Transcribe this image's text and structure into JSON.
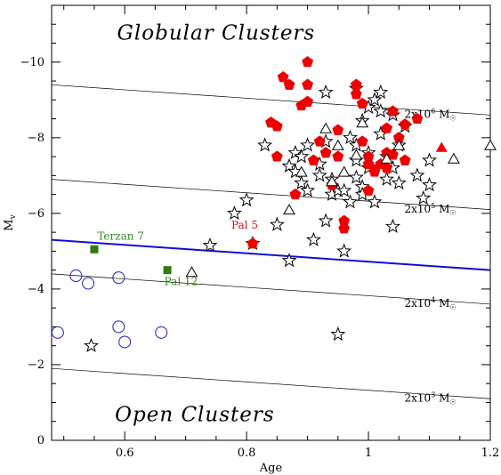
{
  "chart_data": {
    "type": "scatter",
    "title": "",
    "xlabel": "Age",
    "ylabel": "Mv",
    "xlim": [
      0.48,
      1.2
    ],
    "ylim": [
      0,
      -11.5
    ],
    "x_ticks": [
      0.6,
      0.8,
      1,
      1.2
    ],
    "y_ticks": [
      0,
      -2,
      -4,
      -6,
      -8,
      -10
    ],
    "x_tick_labels": [
      "0.6",
      "0.8",
      "1",
      "1.2"
    ],
    "y_tick_labels": [
      "0",
      "−2",
      "−4",
      "−6",
      "−8",
      "−10"
    ],
    "region_labels": [
      {
        "text": "Globular Clusters",
        "x": 0.75,
        "y": -10.6
      },
      {
        "text": "Open Clusters",
        "x": 0.715,
        "y": -0.5
      }
    ],
    "mass_lines": [
      {
        "label": "2x10^6 M☉",
        "base": "2x10",
        "exp": "6",
        "unit": "M",
        "sun": "☉",
        "x": [
          0.48,
          1.2
        ],
        "y": [
          -9.4,
          -8.6
        ]
      },
      {
        "label": "2x10^5 M☉",
        "base": "2x10",
        "exp": "5",
        "unit": "M",
        "sun": "☉",
        "x": [
          0.48,
          1.2
        ],
        "y": [
          -6.9,
          -6.1
        ]
      },
      {
        "label": "2x10^4 M☉",
        "base": "2x10",
        "exp": "4",
        "unit": "M",
        "sun": "☉",
        "x": [
          0.48,
          1.2
        ],
        "y": [
          -4.4,
          -3.6
        ]
      },
      {
        "label": "2x10^3 M☉",
        "base": "2x10",
        "exp": "3",
        "unit": "M",
        "sun": "☉",
        "x": [
          0.48,
          1.2
        ],
        "y": [
          -1.9,
          -1.1
        ]
      }
    ],
    "division_line": {
      "x": [
        0.48,
        1.2
      ],
      "y": [
        -5.3,
        -4.5
      ],
      "color": "#1010d0"
    },
    "annotations": [
      {
        "text": "Terzan 7",
        "x": 0.555,
        "y": -5.3,
        "color": "#2e8b1e"
      },
      {
        "text": "Pal 12",
        "x": 0.665,
        "y": -4.1,
        "color": "#2e8b1e"
      },
      {
        "text": "Pal 5",
        "x": 0.775,
        "y": -5.6,
        "color": "#e01010"
      }
    ],
    "series": [
      {
        "marker": "star",
        "color": "#000000",
        "points": [
          [
            0.545,
            -2.5
          ],
          [
            0.74,
            -5.15
          ],
          [
            0.78,
            -6.0
          ],
          [
            0.8,
            -6.35
          ],
          [
            0.81,
            -5.2
          ],
          [
            0.83,
            -7.8
          ],
          [
            0.85,
            -5.7
          ],
          [
            0.87,
            -4.75
          ],
          [
            0.87,
            -7.25
          ],
          [
            0.88,
            -7.6
          ],
          [
            0.88,
            -7.1
          ],
          [
            0.89,
            -6.8
          ],
          [
            0.89,
            -7.5
          ],
          [
            0.9,
            -7.8
          ],
          [
            0.9,
            -6.6
          ],
          [
            0.91,
            -5.3
          ],
          [
            0.92,
            -7.3
          ],
          [
            0.92,
            -7.0
          ],
          [
            0.93,
            -9.2
          ],
          [
            0.93,
            -7.9
          ],
          [
            0.93,
            -5.8
          ],
          [
            0.94,
            -6.5
          ],
          [
            0.94,
            -6.9
          ],
          [
            0.95,
            -2.8
          ],
          [
            0.95,
            -6.6
          ],
          [
            0.96,
            -5.0
          ],
          [
            0.96,
            -6.6
          ],
          [
            0.97,
            -8.0
          ],
          [
            0.97,
            -6.3
          ],
          [
            0.98,
            -9.3
          ],
          [
            0.98,
            -7.8
          ],
          [
            0.98,
            -7.4
          ],
          [
            0.98,
            -6.95
          ],
          [
            0.99,
            -6.7
          ],
          [
            0.99,
            -8.45
          ],
          [
            0.99,
            -6.5
          ],
          [
            1.0,
            -8.8
          ],
          [
            1.0,
            -7.6
          ],
          [
            1.0,
            -7.2
          ],
          [
            1.01,
            -9.0
          ],
          [
            1.01,
            -6.3
          ],
          [
            1.02,
            -9.2
          ],
          [
            1.02,
            -8.7
          ],
          [
            1.02,
            -8.1
          ],
          [
            1.03,
            -7.5
          ],
          [
            1.03,
            -6.9
          ],
          [
            1.04,
            -8.6
          ],
          [
            1.04,
            -7.2
          ],
          [
            1.04,
            -5.65
          ],
          [
            1.05,
            -7.8
          ],
          [
            1.05,
            -6.8
          ],
          [
            1.06,
            -8.3
          ],
          [
            1.08,
            -7.0
          ],
          [
            1.09,
            -6.4
          ],
          [
            1.1,
            -7.4
          ],
          [
            1.1,
            -6.75
          ]
        ]
      },
      {
        "marker": "pentagon",
        "color": "#ee0000",
        "points": [
          [
            0.81,
            -5.2
          ],
          [
            0.84,
            -8.4
          ],
          [
            0.85,
            -8.3
          ],
          [
            0.86,
            -9.6
          ],
          [
            0.87,
            -9.4
          ],
          [
            0.88,
            -6.5
          ],
          [
            0.89,
            -8.85
          ],
          [
            0.9,
            -10.0
          ],
          [
            0.9,
            -9.4
          ],
          [
            0.9,
            -8.95
          ],
          [
            0.85,
            -7.5
          ],
          [
            0.91,
            -7.4
          ],
          [
            0.92,
            -7.9
          ],
          [
            0.93,
            -7.6
          ],
          [
            0.94,
            -6.75
          ],
          [
            0.95,
            -7.5
          ],
          [
            0.95,
            -8.2
          ],
          [
            0.96,
            -5.6
          ],
          [
            0.96,
            -5.8
          ],
          [
            0.98,
            -9.4
          ],
          [
            0.98,
            -9.15
          ],
          [
            0.99,
            -8.9
          ],
          [
            0.99,
            -7.9
          ],
          [
            1.0,
            -7.5
          ],
          [
            1.0,
            -7.3
          ],
          [
            1.0,
            -6.6
          ],
          [
            1.01,
            -7.15
          ],
          [
            1.02,
            -7.3
          ],
          [
            1.03,
            -7.6
          ],
          [
            1.03,
            -8.25
          ],
          [
            1.03,
            -7.2
          ],
          [
            1.04,
            -8.7
          ],
          [
            1.04,
            -7.55
          ],
          [
            1.05,
            -8.0
          ],
          [
            1.06,
            -8.35
          ],
          [
            1.06,
            -7.4
          ],
          [
            1.08,
            -8.5
          ],
          [
            1.01,
            -7.1
          ]
        ]
      },
      {
        "marker": "triangle-open",
        "color": "#000000",
        "points": [
          [
            0.71,
            -4.45
          ],
          [
            0.87,
            -6.1
          ],
          [
            0.89,
            -7.1
          ],
          [
            0.93,
            -8.25
          ],
          [
            0.94,
            -6.85
          ],
          [
            0.95,
            -7.8
          ],
          [
            0.96,
            -7.1
          ],
          [
            0.98,
            -7.55
          ],
          [
            0.99,
            -8.4
          ],
          [
            1.03,
            -7.45
          ],
          [
            1.05,
            -7.8
          ],
          [
            1.14,
            -7.45
          ],
          [
            1.2,
            -7.8
          ]
        ]
      },
      {
        "marker": "triangle-filled",
        "color": "#ee0000",
        "points": [
          [
            1.12,
            -7.75
          ]
        ]
      },
      {
        "marker": "square",
        "color": "#2e7d10",
        "points": [
          [
            0.55,
            -5.05
          ],
          [
            0.67,
            -4.5
          ]
        ]
      },
      {
        "marker": "circle-open",
        "color": "#2020c0",
        "points": [
          [
            0.49,
            -2.85
          ],
          [
            0.52,
            -4.35
          ],
          [
            0.54,
            -4.15
          ],
          [
            0.59,
            -4.3
          ],
          [
            0.59,
            -3.0
          ],
          [
            0.6,
            -2.6
          ],
          [
            0.66,
            -2.85
          ]
        ]
      }
    ]
  }
}
